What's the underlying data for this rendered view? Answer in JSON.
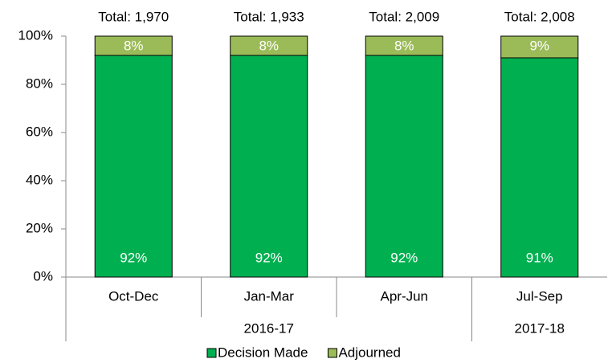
{
  "chart_data": {
    "type": "stacked_bar_percent",
    "categories": [
      "Oct-Dec",
      "Jan-Mar",
      "Apr-Jun",
      "Jul-Sep"
    ],
    "groups": [
      {
        "label": "2016-17",
        "count": 3
      },
      {
        "label": "2017-18",
        "count": 1
      }
    ],
    "annotations": [
      "Total: 1,970",
      "Total: 1,933",
      "Total: 2,009",
      "Total: 2,008"
    ],
    "series": [
      {
        "name": "Decision Made",
        "color": "#00b050",
        "values": [
          92,
          92,
          92,
          91
        ],
        "value_labels": [
          "92%",
          "92%",
          "92%",
          "91%"
        ]
      },
      {
        "name": "Adjourned",
        "color": "#9bbb59",
        "values": [
          8,
          8,
          8,
          9
        ],
        "value_labels": [
          "8%",
          "8%",
          "8%",
          "9%"
        ]
      }
    ],
    "ylim": [
      0,
      100
    ],
    "yticks": [
      {
        "value": 0,
        "label": "0%"
      },
      {
        "value": 20,
        "label": "20%"
      },
      {
        "value": 40,
        "label": "40%"
      },
      {
        "value": 60,
        "label": "60%"
      },
      {
        "value": 80,
        "label": "80%"
      },
      {
        "value": 100,
        "label": "100%"
      }
    ],
    "grid": false,
    "legend": "bottom"
  }
}
